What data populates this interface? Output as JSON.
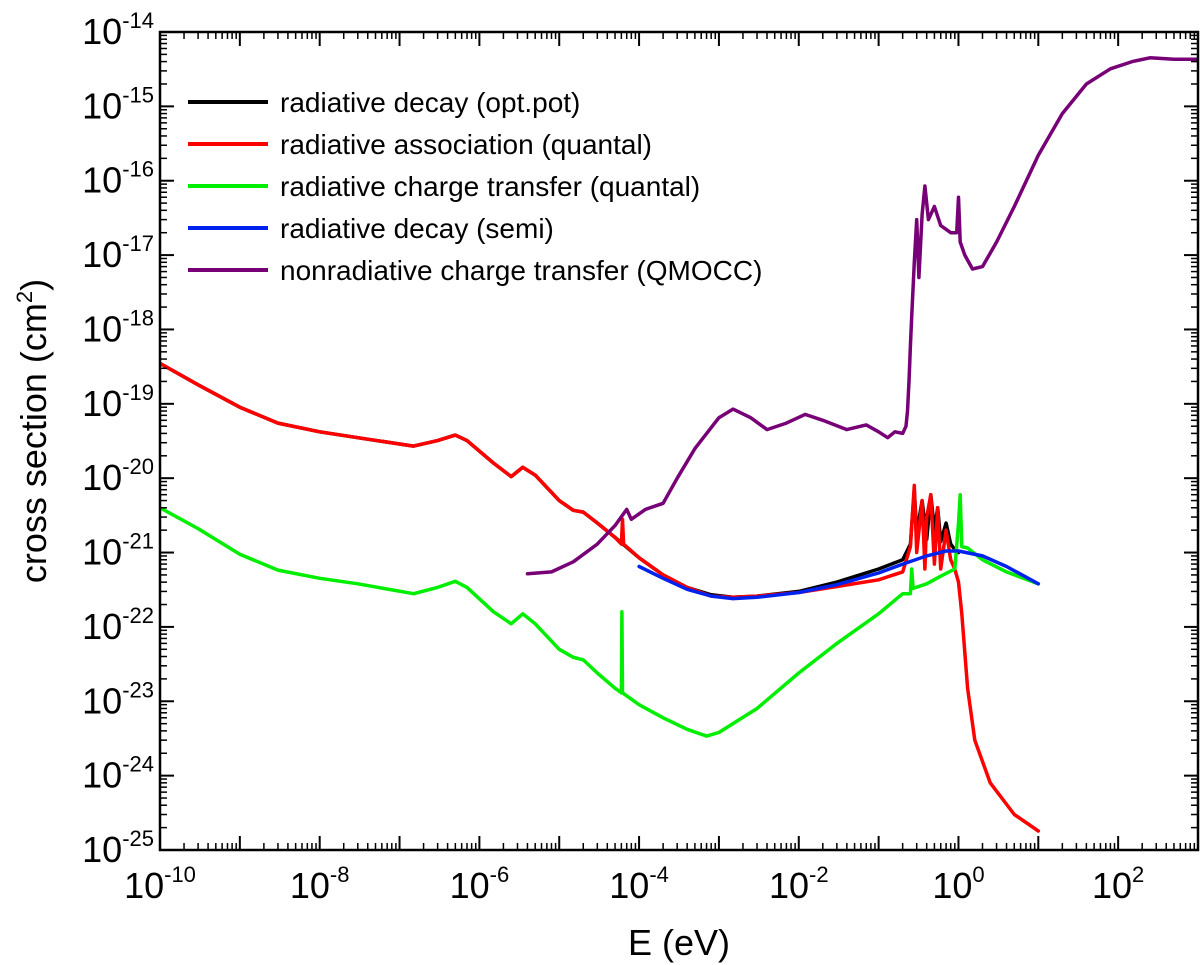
{
  "chart_data": {
    "type": "line",
    "xscale": "log",
    "yscale": "log",
    "xlabel": "E (eV)",
    "ylabel_main": "cross section (cm",
    "ylabel_sup": "2",
    "ylabel_end": ")",
    "xlim": [
      1e-10,
      1000
    ],
    "ylim": [
      1e-25,
      1e-14
    ],
    "x_ticks": [
      {
        "value": 1e-10,
        "base": "10",
        "exp": "-10"
      },
      {
        "value": 1e-08,
        "base": "10",
        "exp": "-8"
      },
      {
        "value": 1e-06,
        "base": "10",
        "exp": "-6"
      },
      {
        "value": 0.0001,
        "base": "10",
        "exp": "-4"
      },
      {
        "value": 0.01,
        "base": "10",
        "exp": "-2"
      },
      {
        "value": 1,
        "base": "10",
        "exp": "0"
      },
      {
        "value": 100,
        "base": "10",
        "exp": "2"
      }
    ],
    "y_ticks": [
      {
        "value": 1e-25,
        "base": "10",
        "exp": "-25"
      },
      {
        "value": 1e-24,
        "base": "10",
        "exp": "-24"
      },
      {
        "value": 1e-23,
        "base": "10",
        "exp": "-23"
      },
      {
        "value": 1e-22,
        "base": "10",
        "exp": "-22"
      },
      {
        "value": 1e-21,
        "base": "10",
        "exp": "-21"
      },
      {
        "value": 1e-20,
        "base": "10",
        "exp": "-20"
      },
      {
        "value": 1e-19,
        "base": "10",
        "exp": "-19"
      },
      {
        "value": 1e-18,
        "base": "10",
        "exp": "-18"
      },
      {
        "value": 1e-17,
        "base": "10",
        "exp": "-17"
      },
      {
        "value": 1e-16,
        "base": "10",
        "exp": "-16"
      },
      {
        "value": 1e-15,
        "base": "10",
        "exp": "-15"
      },
      {
        "value": 1e-14,
        "base": "10",
        "exp": "-14"
      }
    ],
    "legend_position": "top-left",
    "series": [
      {
        "name": "radiative decay (opt.pot)",
        "color": "#000000",
        "points": [
          [
            1e-10,
            3.5e-19
          ],
          [
            3e-10,
            1.8e-19
          ],
          [
            1e-09,
            9e-20
          ],
          [
            3e-09,
            5.5e-20
          ],
          [
            1e-08,
            4.2e-20
          ],
          [
            3e-08,
            3.5e-20
          ],
          [
            1.5e-07,
            2.7e-20
          ],
          [
            3e-07,
            3.2e-20
          ],
          [
            5e-07,
            3.8e-20
          ],
          [
            7e-07,
            3.2e-20
          ],
          [
            1.5e-06,
            1.6e-20
          ],
          [
            2.5e-06,
            1.05e-20
          ],
          [
            3.5e-06,
            1.4e-20
          ],
          [
            5e-06,
            1.1e-20
          ],
          [
            1e-05,
            5e-21
          ],
          [
            1.5e-05,
            3.7e-21
          ],
          [
            2e-05,
            3.5e-21
          ],
          [
            3e-05,
            2.5e-21
          ],
          [
            5e-05,
            1.6e-21
          ],
          [
            0.0001,
            8.5e-22
          ],
          [
            0.0002,
            5e-22
          ],
          [
            0.0004,
            3.4e-22
          ],
          [
            0.0008,
            2.7e-22
          ],
          [
            0.0015,
            2.5e-22
          ],
          [
            0.003,
            2.6e-22
          ],
          [
            0.01,
            3e-22
          ],
          [
            0.03,
            4e-22
          ],
          [
            0.1,
            6e-22
          ],
          [
            0.2,
            8e-22
          ],
          [
            0.25,
            1.3e-21
          ],
          [
            0.28,
            7e-21
          ],
          [
            0.3,
            1.8e-21
          ],
          [
            0.35,
            5e-21
          ],
          [
            0.4,
            1.5e-21
          ],
          [
            0.45,
            6e-21
          ],
          [
            0.5,
            2e-21
          ],
          [
            0.55,
            4e-21
          ],
          [
            0.6,
            1.4e-21
          ],
          [
            0.7,
            2.5e-21
          ],
          [
            0.8,
            1.3e-21
          ],
          [
            0.9,
            1.1e-21
          ],
          [
            1.0,
            1e-21
          ]
        ]
      },
      {
        "name": "radiative association (quantal)",
        "color": "#ff0000",
        "points": [
          [
            1e-10,
            3.5e-19
          ],
          [
            3e-10,
            1.8e-19
          ],
          [
            1e-09,
            9e-20
          ],
          [
            3e-09,
            5.5e-20
          ],
          [
            1e-08,
            4.2e-20
          ],
          [
            3e-08,
            3.5e-20
          ],
          [
            1.5e-07,
            2.7e-20
          ],
          [
            3e-07,
            3.2e-20
          ],
          [
            5e-07,
            3.8e-20
          ],
          [
            7e-07,
            3.2e-20
          ],
          [
            1.5e-06,
            1.6e-20
          ],
          [
            2.5e-06,
            1.05e-20
          ],
          [
            3.5e-06,
            1.4e-20
          ],
          [
            5e-06,
            1.1e-20
          ],
          [
            1e-05,
            5e-21
          ],
          [
            1.5e-05,
            3.7e-21
          ],
          [
            2e-05,
            3.5e-21
          ],
          [
            3e-05,
            2.5e-21
          ],
          [
            5e-05,
            1.6e-21
          ],
          [
            6e-05,
            1.3e-21
          ],
          [
            6.2e-05,
            2.8e-21
          ],
          [
            6.4e-05,
            1.3e-21
          ],
          [
            0.0001,
            8.5e-22
          ],
          [
            0.0002,
            5e-22
          ],
          [
            0.0004,
            3.4e-22
          ],
          [
            0.0008,
            2.6e-22
          ],
          [
            0.0015,
            2.5e-22
          ],
          [
            0.003,
            2.6e-22
          ],
          [
            0.01,
            2.9e-22
          ],
          [
            0.03,
            3.5e-22
          ],
          [
            0.1,
            4.3e-22
          ],
          [
            0.2,
            5.5e-22
          ],
          [
            0.25,
            1.2e-21
          ],
          [
            0.28,
            8e-21
          ],
          [
            0.3,
            1e-21
          ],
          [
            0.35,
            5e-21
          ],
          [
            0.38,
            6e-22
          ],
          [
            0.4,
            3e-21
          ],
          [
            0.45,
            6e-21
          ],
          [
            0.5,
            7e-22
          ],
          [
            0.55,
            4e-21
          ],
          [
            0.6,
            6e-22
          ],
          [
            0.7,
            2e-21
          ],
          [
            0.8,
            8e-22
          ],
          [
            0.9,
            6e-22
          ],
          [
            1.0,
            4e-22
          ],
          [
            1.1,
            1.5e-22
          ],
          [
            1.3,
            1.5e-23
          ],
          [
            1.6,
            3e-24
          ],
          [
            2.5,
            8e-25
          ],
          [
            5,
            3e-25
          ],
          [
            10,
            1.8e-25
          ]
        ]
      },
      {
        "name": "radiative charge transfer (quantal)",
        "color": "#00ee00",
        "points": [
          [
            1e-10,
            4e-21
          ],
          [
            3e-10,
            2.1e-21
          ],
          [
            1e-09,
            9.5e-22
          ],
          [
            3e-09,
            5.8e-22
          ],
          [
            1e-08,
            4.5e-22
          ],
          [
            3e-08,
            3.8e-22
          ],
          [
            1.5e-07,
            2.8e-22
          ],
          [
            3e-07,
            3.4e-22
          ],
          [
            5e-07,
            4.1e-22
          ],
          [
            7e-07,
            3.4e-22
          ],
          [
            1.5e-06,
            1.6e-22
          ],
          [
            2.5e-06,
            1.1e-22
          ],
          [
            3.5e-06,
            1.5e-22
          ],
          [
            5e-06,
            1.1e-22
          ],
          [
            1e-05,
            5e-23
          ],
          [
            1.5e-05,
            3.9e-23
          ],
          [
            2e-05,
            3.6e-23
          ],
          [
            3e-05,
            2.4e-23
          ],
          [
            5e-05,
            1.5e-23
          ],
          [
            6e-05,
            1.3e-23
          ],
          [
            6.1e-05,
            1.6e-22
          ],
          [
            6.2e-05,
            1.3e-23
          ],
          [
            0.0001,
            9e-24
          ],
          [
            0.0002,
            6e-24
          ],
          [
            0.0004,
            4.2e-24
          ],
          [
            0.0007,
            3.4e-24
          ],
          [
            0.001,
            3.8e-24
          ],
          [
            0.003,
            8e-24
          ],
          [
            0.01,
            2.4e-23
          ],
          [
            0.03,
            6e-23
          ],
          [
            0.1,
            1.5e-22
          ],
          [
            0.2,
            2.8e-22
          ],
          [
            0.25,
            2.8e-22
          ],
          [
            0.26,
            6e-22
          ],
          [
            0.27,
            3.3e-22
          ],
          [
            0.4,
            3.8e-22
          ],
          [
            0.6,
            4.8e-22
          ],
          [
            0.9,
            6e-22
          ],
          [
            1.0,
            2.5e-21
          ],
          [
            1.05,
            6e-21
          ],
          [
            1.1,
            1.2e-21
          ],
          [
            1.3,
            1.15e-21
          ],
          [
            2,
            8e-22
          ],
          [
            4,
            5.5e-22
          ],
          [
            10,
            3.8e-22
          ]
        ]
      },
      {
        "name": "radiative decay (semi)",
        "color": "#0022ee",
        "points": [
          [
            0.0001,
            6.5e-22
          ],
          [
            0.0002,
            4.5e-22
          ],
          [
            0.0004,
            3.2e-22
          ],
          [
            0.0008,
            2.6e-22
          ],
          [
            0.0015,
            2.4e-22
          ],
          [
            0.003,
            2.5e-22
          ],
          [
            0.01,
            2.9e-22
          ],
          [
            0.03,
            3.7e-22
          ],
          [
            0.1,
            5.3e-22
          ],
          [
            0.2,
            7e-22
          ],
          [
            0.4,
            9e-22
          ],
          [
            0.7,
            1.05e-21
          ],
          [
            1.0,
            1.05e-21
          ],
          [
            2,
            9e-22
          ],
          [
            4,
            6.5e-22
          ],
          [
            10,
            3.8e-22
          ]
        ]
      },
      {
        "name": "nonradiative charge transfer (QMOCC)",
        "color": "#770077",
        "points": [
          [
            4e-06,
            5.2e-22
          ],
          [
            8e-06,
            5.5e-22
          ],
          [
            1.5e-05,
            7.5e-22
          ],
          [
            3e-05,
            1.3e-21
          ],
          [
            5e-05,
            2.3e-21
          ],
          [
            7e-05,
            3.8e-21
          ],
          [
            8e-05,
            2.8e-21
          ],
          [
            0.00012,
            3.8e-21
          ],
          [
            0.0002,
            4.6e-21
          ],
          [
            0.0003,
            1e-20
          ],
          [
            0.0005,
            2.5e-20
          ],
          [
            0.001,
            6.5e-20
          ],
          [
            0.0015,
            8.5e-20
          ],
          [
            0.0025,
            6.5e-20
          ],
          [
            0.004,
            4.5e-20
          ],
          [
            0.007,
            5.5e-20
          ],
          [
            0.012,
            7.2e-20
          ],
          [
            0.02,
            6e-20
          ],
          [
            0.04,
            4.5e-20
          ],
          [
            0.07,
            5.2e-20
          ],
          [
            0.1,
            4.2e-20
          ],
          [
            0.13,
            3.5e-20
          ],
          [
            0.16,
            4.2e-20
          ],
          [
            0.2,
            4e-20
          ],
          [
            0.22,
            5e-20
          ],
          [
            0.23,
            8e-20
          ],
          [
            0.24,
            2e-19
          ],
          [
            0.25,
            6e-19
          ],
          [
            0.26,
            1.5e-18
          ],
          [
            0.28,
            8e-18
          ],
          [
            0.3,
            3e-17
          ],
          [
            0.32,
            5e-18
          ],
          [
            0.35,
            3.5e-17
          ],
          [
            0.38,
            8.5e-17
          ],
          [
            0.42,
            3e-17
          ],
          [
            0.5,
            4.5e-17
          ],
          [
            0.6,
            2.5e-17
          ],
          [
            0.8,
            2e-17
          ],
          [
            0.95,
            2e-17
          ],
          [
            1.0,
            6e-17
          ],
          [
            1.05,
            1.5e-17
          ],
          [
            1.2,
            1e-17
          ],
          [
            1.5,
            6.5e-18
          ],
          [
            2,
            7e-18
          ],
          [
            3,
            1.5e-17
          ],
          [
            5,
            4.5e-17
          ],
          [
            10,
            2.2e-16
          ],
          [
            20,
            8e-16
          ],
          [
            40,
            2e-15
          ],
          [
            80,
            3.2e-15
          ],
          [
            150,
            4e-15
          ],
          [
            250,
            4.5e-15
          ],
          [
            500,
            4.3e-15
          ],
          [
            1000,
            4.3e-15
          ]
        ]
      }
    ]
  }
}
